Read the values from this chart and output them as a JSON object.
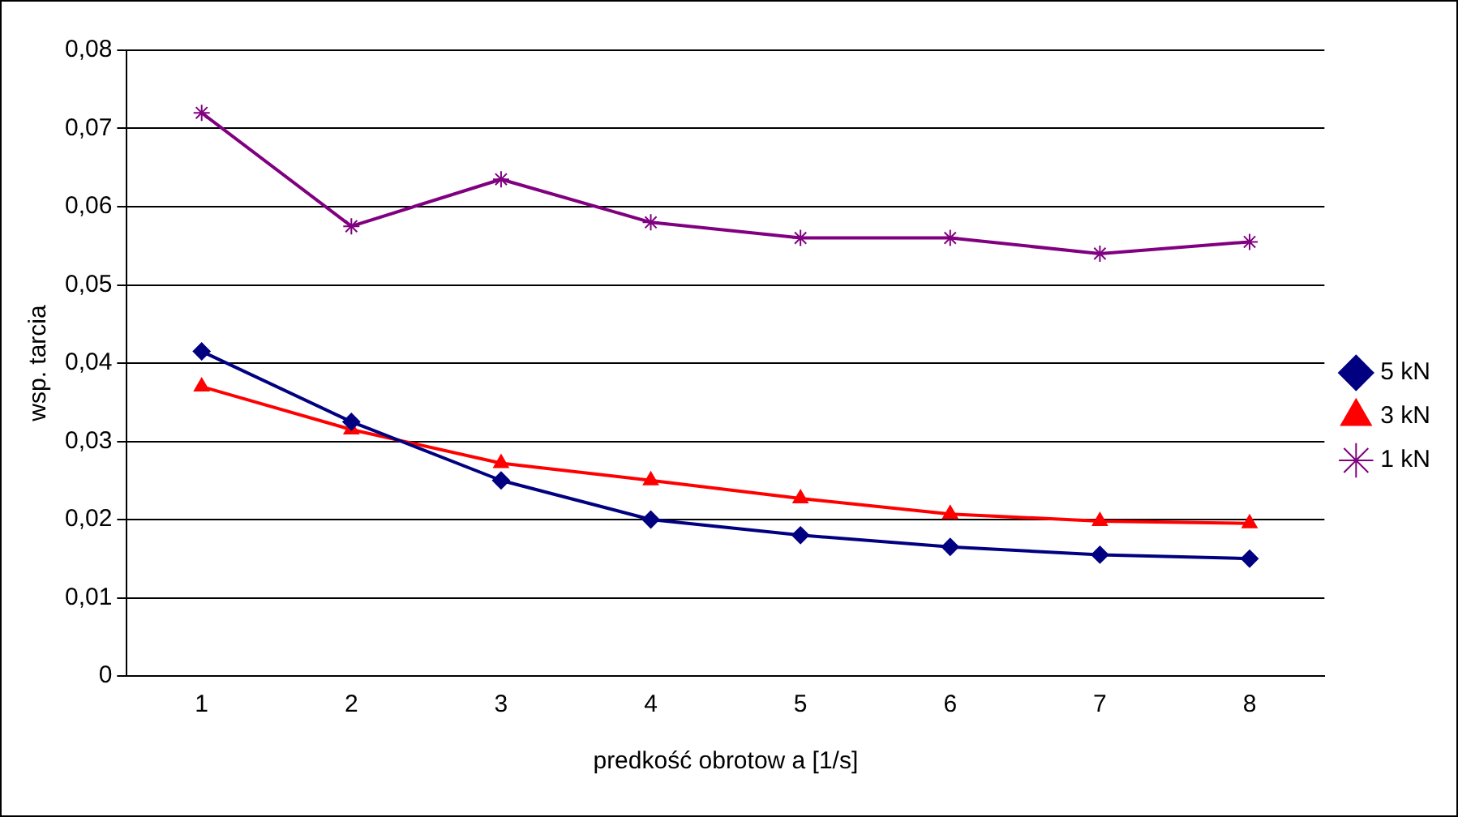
{
  "chart_data": {
    "type": "line",
    "xlabel": "predkość obrotow a [1/s]",
    "ylabel": "wsp. tarcia",
    "categories": [
      "1",
      "2",
      "3",
      "4",
      "5",
      "6",
      "7",
      "8"
    ],
    "series": [
      {
        "name": "5 kN",
        "color": "#000080",
        "marker": "diamond",
        "values": [
          0.0415,
          0.0325,
          0.025,
          0.02,
          0.018,
          0.0165,
          0.0155,
          0.015
        ]
      },
      {
        "name": "3 kN",
        "color": "#ff0000",
        "marker": "triangle",
        "values": [
          0.037,
          0.0315,
          0.0272,
          0.025,
          0.0227,
          0.0207,
          0.0198,
          0.0195
        ]
      },
      {
        "name": "1 kN",
        "color": "#800080",
        "marker": "cross",
        "values": [
          0.072,
          0.0575,
          0.0635,
          0.058,
          0.056,
          0.056,
          0.054,
          0.0555
        ]
      }
    ],
    "ylim": [
      0,
      0.08
    ],
    "yticks": [
      0,
      {
        "value": 0.01,
        "label": "0,01"
      },
      {
        "value": 0.02,
        "label": "0,02"
      },
      {
        "value": 0.03,
        "label": "0,03"
      },
      {
        "value": 0.04,
        "label": "0,04"
      },
      {
        "value": 0.05,
        "label": "0,05"
      },
      {
        "value": 0.06,
        "label": "0,06"
      },
      {
        "value": 0.07,
        "label": "0,07"
      },
      {
        "value": 0.08,
        "label": "0,08"
      }
    ],
    "grid": "y",
    "legend": "right",
    "line_style": "solid"
  }
}
